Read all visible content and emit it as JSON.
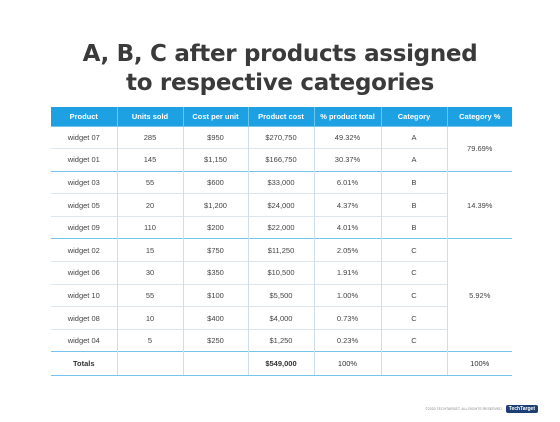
{
  "title_line1": "A, B, C after products assigned",
  "title_line2": "to respective categories",
  "headers": [
    "Product",
    "Units sold",
    "Cost per unit",
    "Product cost",
    "% product total",
    "Category",
    "Category %"
  ],
  "rows": [
    [
      "widget 07",
      "285",
      "$950",
      "$270,750",
      "49.32%",
      "A"
    ],
    [
      "widget 01",
      "145",
      "$1,150",
      "$166,750",
      "30.37%",
      "A"
    ],
    [
      "widget 03",
      "55",
      "$600",
      "$33,000",
      "6.01%",
      "B"
    ],
    [
      "widget 05",
      "20",
      "$1,200",
      "$24,000",
      "4.37%",
      "B"
    ],
    [
      "widget 09",
      "110",
      "$200",
      "$22,000",
      "4.01%",
      "B"
    ],
    [
      "widget 02",
      "15",
      "$750",
      "$11,250",
      "2.05%",
      "C"
    ],
    [
      "widget 06",
      "30",
      "$350",
      "$10,500",
      "1.91%",
      "C"
    ],
    [
      "widget 10",
      "55",
      "$100",
      "$5,500",
      "1.00%",
      "C"
    ],
    [
      "widget 08",
      "10",
      "$400",
      "$4,000",
      "0.73%",
      "C"
    ],
    [
      "widget 04",
      "5",
      "$250",
      "$1,250",
      "0.23%",
      "C"
    ]
  ],
  "category_pct": {
    "A": "79.69%",
    "B": "14.39%",
    "C": "5.92%"
  },
  "totals": {
    "label": "Totals",
    "product_cost": "$549,000",
    "pct_total": "100%",
    "category_pct": "100%"
  },
  "footer": {
    "copyright": "©2020 TECHTARGET. ALL RIGHTS RESERVED",
    "logo": "TechTarget"
  },
  "colors": {
    "header_bg": "#1da1e3",
    "group_line": "#74c5ec"
  }
}
